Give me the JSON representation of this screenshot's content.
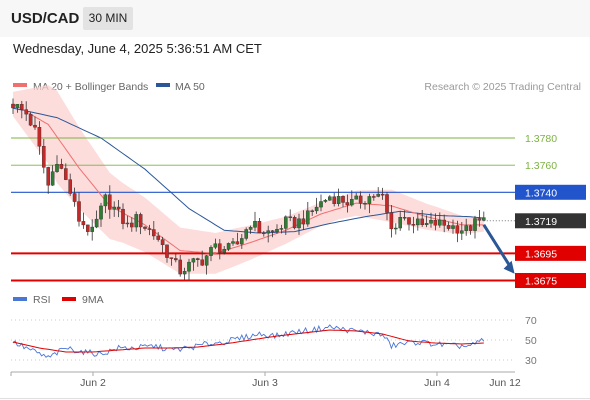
{
  "header": {
    "symbol": "USD/CAD",
    "timeframe": "30 MIN"
  },
  "timestamp": "Wednesday, June 4, 2025 5:36:51 AM CET",
  "legend": {
    "ma20": "MA 20 + Bollinger Bands",
    "ma50": "MA 50",
    "credit": "Research © 2025 Trading Central"
  },
  "rsi_legend": {
    "rsi": "RSI",
    "ma": "9MA"
  },
  "colors": {
    "up_candle": "#2e7d32",
    "down_candle": "#c62828",
    "bollinger_fill": "#fcd0d0",
    "ma20": "#f07070",
    "ma50": "#2b5797",
    "support": "#e00000",
    "resistance": "#7cb342",
    "pivot": "#2255cc",
    "current": "#333333",
    "rsi": "#4a76d6",
    "rsi_ma": "#e00000",
    "forecast_arrow": "#2b5797"
  },
  "chart_data": {
    "type": "candlestick",
    "x_ticks": [
      "Jun 2",
      "Jun 3",
      "Jun 4",
      "Jun 12"
    ],
    "ylim": [
      1.3668,
      1.3808
    ],
    "levels": [
      {
        "label": "1.3780",
        "value": 1.378,
        "role": "resistance"
      },
      {
        "label": "1.3760",
        "value": 1.376,
        "role": "resistance"
      },
      {
        "label": "1.3740",
        "value": 1.374,
        "role": "pivot"
      },
      {
        "label": "1.3719",
        "value": 1.3719,
        "role": "current"
      },
      {
        "label": "1.3695",
        "value": 1.3695,
        "role": "support"
      },
      {
        "label": "1.3675",
        "value": 1.3675,
        "role": "support"
      }
    ],
    "price_path": [
      [
        0,
        1.3805
      ],
      [
        3,
        1.3798
      ],
      [
        5,
        1.3785
      ],
      [
        8,
        1.3745
      ],
      [
        10,
        1.3765
      ],
      [
        13,
        1.374
      ],
      [
        15,
        1.372
      ],
      [
        18,
        1.371
      ],
      [
        21,
        1.3735
      ],
      [
        23,
        1.3728
      ],
      [
        26,
        1.3715
      ],
      [
        28,
        1.372
      ],
      [
        31,
        1.3712
      ],
      [
        33,
        1.3706
      ],
      [
        36,
        1.369
      ],
      [
        38,
        1.3682
      ],
      [
        41,
        1.3688
      ],
      [
        43,
        1.369
      ],
      [
        46,
        1.37
      ],
      [
        49,
        1.3698
      ],
      [
        51,
        1.3702
      ],
      [
        54,
        1.3718
      ],
      [
        56,
        1.3712
      ],
      [
        59,
        1.371
      ],
      [
        62,
        1.3718
      ],
      [
        64,
        1.3717
      ],
      [
        67,
        1.3722
      ],
      [
        69,
        1.373
      ],
      [
        72,
        1.3737
      ],
      [
        74,
        1.3735
      ],
      [
        77,
        1.3732
      ],
      [
        79,
        1.3734
      ],
      [
        82,
        1.3738
      ],
      [
        84,
        1.3736
      ],
      [
        86,
        1.3712
      ],
      [
        88,
        1.3722
      ],
      [
        91,
        1.3718
      ],
      [
        93,
        1.3715
      ],
      [
        96,
        1.3717
      ],
      [
        98,
        1.3716
      ],
      [
        101,
        1.3714
      ],
      [
        103,
        1.3712
      ],
      [
        105,
        1.3717
      ],
      [
        107,
        1.3719
      ]
    ],
    "ma20_path": [
      [
        0,
        1.3805
      ],
      [
        8,
        1.379
      ],
      [
        15,
        1.3758
      ],
      [
        22,
        1.373
      ],
      [
        30,
        1.3716
      ],
      [
        38,
        1.3697
      ],
      [
        46,
        1.3695
      ],
      [
        54,
        1.3703
      ],
      [
        62,
        1.3712
      ],
      [
        70,
        1.3724
      ],
      [
        78,
        1.3732
      ],
      [
        86,
        1.373
      ],
      [
        94,
        1.3722
      ],
      [
        102,
        1.3716
      ],
      [
        107,
        1.3716
      ]
    ],
    "ma50_path": [
      [
        0,
        1.3802
      ],
      [
        10,
        1.3795
      ],
      [
        20,
        1.378
      ],
      [
        30,
        1.3757
      ],
      [
        40,
        1.3728
      ],
      [
        48,
        1.3712
      ],
      [
        56,
        1.371
      ],
      [
        64,
        1.3711
      ],
      [
        72,
        1.3717
      ],
      [
        80,
        1.3722
      ],
      [
        88,
        1.3726
      ],
      [
        96,
        1.3723
      ],
      [
        104,
        1.3722
      ],
      [
        107,
        1.3721
      ]
    ],
    "band_width": [
      [
        0,
        0.0009
      ],
      [
        10,
        0.0034
      ],
      [
        25,
        0.0022
      ],
      [
        38,
        0.0017
      ],
      [
        50,
        0.0014
      ],
      [
        62,
        0.001
      ],
      [
        74,
        0.0008
      ],
      [
        86,
        0.0012
      ],
      [
        96,
        0.0009
      ],
      [
        107,
        0.0005
      ]
    ],
    "forecast": {
      "from": [
        107,
        1.3719
      ],
      "to": [
        114,
        1.3677
      ]
    },
    "rsi": {
      "ylim": [
        20,
        80
      ],
      "ticks": [
        70,
        50,
        30
      ],
      "rsi_path": [
        [
          0,
          48
        ],
        [
          4,
          40
        ],
        [
          8,
          32
        ],
        [
          12,
          42
        ],
        [
          16,
          38
        ],
        [
          20,
          36
        ],
        [
          24,
          42
        ],
        [
          28,
          42
        ],
        [
          32,
          44
        ],
        [
          36,
          40
        ],
        [
          40,
          42
        ],
        [
          44,
          46
        ],
        [
          48,
          48
        ],
        [
          52,
          52
        ],
        [
          56,
          56
        ],
        [
          60,
          54
        ],
        [
          64,
          58
        ],
        [
          68,
          60
        ],
        [
          72,
          63
        ],
        [
          76,
          60
        ],
        [
          80,
          58
        ],
        [
          84,
          55
        ],
        [
          86,
          44
        ],
        [
          88,
          46
        ],
        [
          92,
          48
        ],
        [
          96,
          46
        ],
        [
          100,
          44
        ],
        [
          104,
          44
        ],
        [
          107,
          50
        ]
      ],
      "ma_path": [
        [
          0,
          48
        ],
        [
          6,
          42
        ],
        [
          12,
          38
        ],
        [
          18,
          38
        ],
        [
          24,
          40
        ],
        [
          30,
          42
        ],
        [
          36,
          42
        ],
        [
          42,
          43
        ],
        [
          48,
          46
        ],
        [
          54,
          50
        ],
        [
          60,
          54
        ],
        [
          66,
          57
        ],
        [
          72,
          60
        ],
        [
          78,
          59
        ],
        [
          84,
          56
        ],
        [
          90,
          49
        ],
        [
          96,
          47
        ],
        [
          102,
          46
        ],
        [
          107,
          47
        ]
      ]
    }
  }
}
